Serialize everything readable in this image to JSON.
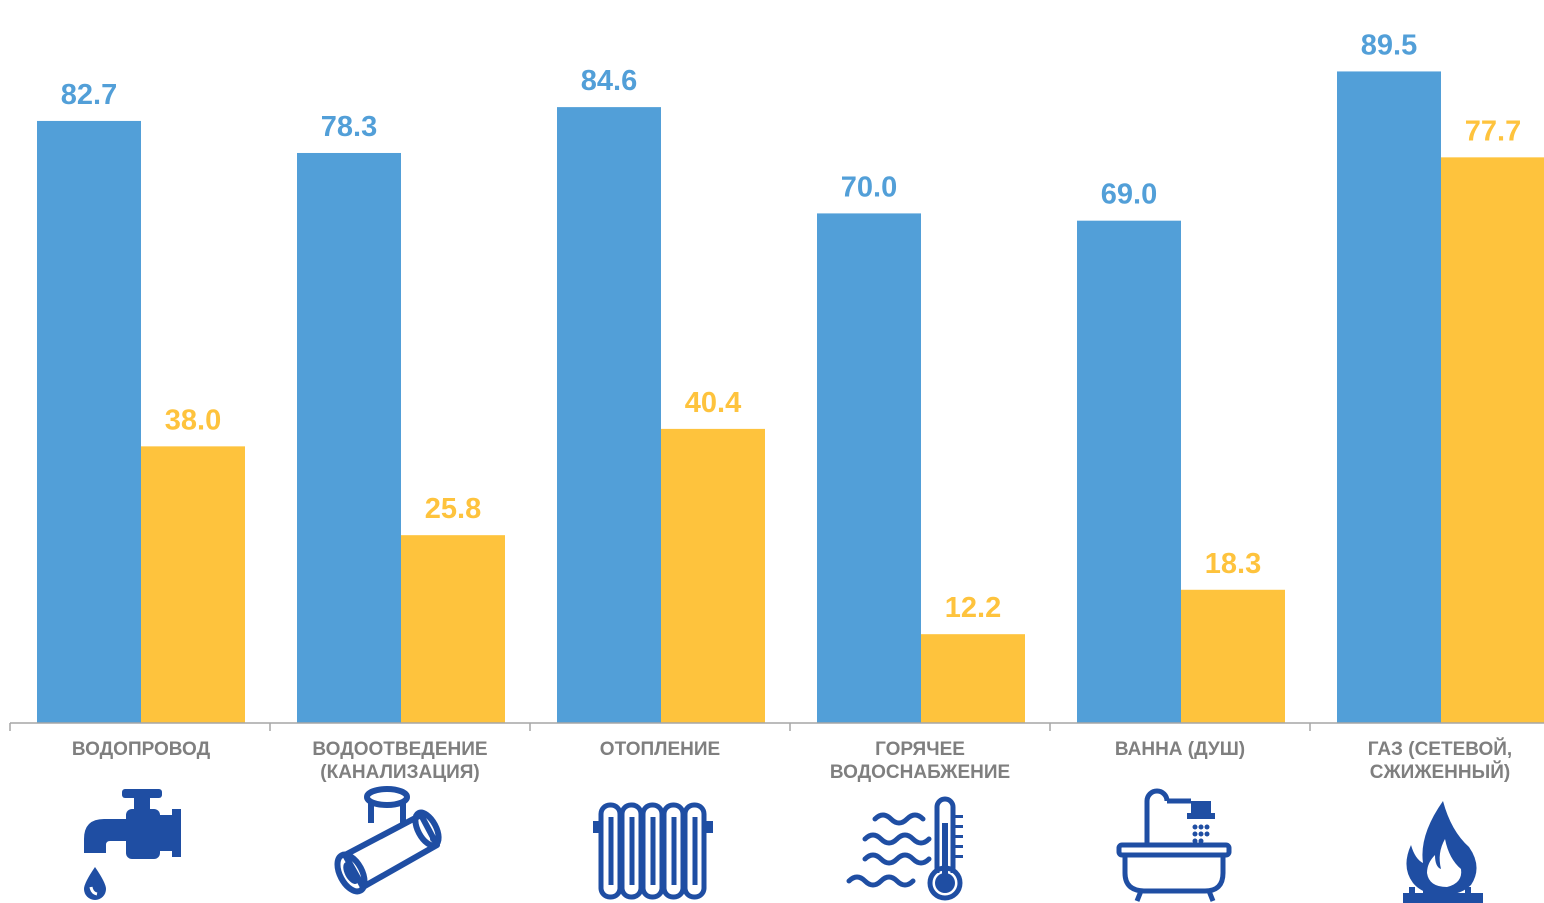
{
  "colors": {
    "series_1": "#529fd8",
    "series_2": "#fec33d",
    "icon": "#1f4ea3",
    "axis": "#a6a6a6",
    "category_text": "#7f7f7f"
  },
  "chart_data": {
    "type": "bar",
    "categories": [
      "ВОДОПРОВОД",
      "ВОДООТВЕДЕНИЕ\n(КАНАЛИЗАЦИЯ)",
      "ОТОПЛЕНИЕ",
      "ГОРЯЧЕЕ\nВОДОСНАБЖЕНИЕ",
      "ВАННА (ДУШ)",
      "ГАЗ (СЕТЕВОЙ,\nСЖИЖЕННЫЙ)"
    ],
    "series": [
      {
        "values": [
          82.7,
          78.3,
          84.6,
          70.0,
          69.0,
          89.5
        ],
        "labels": [
          "82.7",
          "78.3",
          "84.6",
          "70.0",
          "69.0",
          "89.5"
        ]
      },
      {
        "values": [
          38.0,
          25.8,
          40.4,
          12.2,
          18.3,
          77.7
        ],
        "labels": [
          "38.0",
          "25.8",
          "40.4",
          "12.2",
          "18.3",
          "77.7"
        ]
      }
    ],
    "ylim": [
      0,
      100
    ],
    "grid": false,
    "legend": "none",
    "icons": [
      "water-tap-icon",
      "pipe-fitting-icon",
      "radiator-icon",
      "hot-water-icon",
      "bathtub-shower-icon",
      "gas-flame-icon"
    ]
  }
}
